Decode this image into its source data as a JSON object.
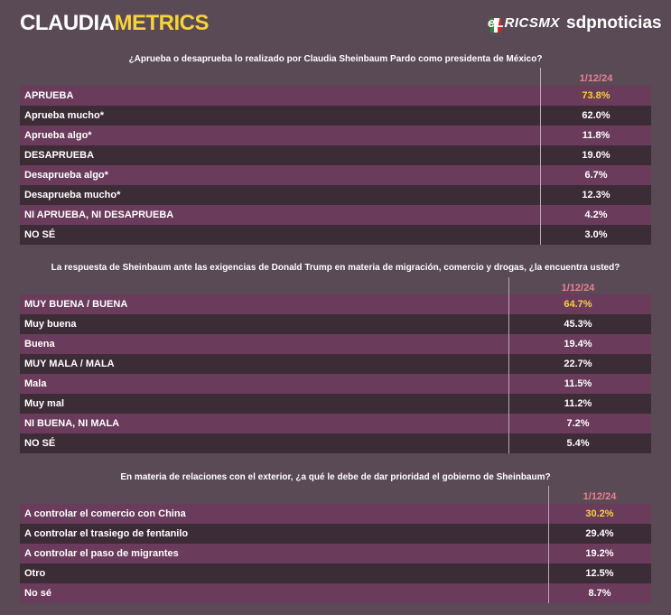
{
  "header": {
    "brand_a": "CLAUDIA",
    "brand_b": "METRICS",
    "partner_a": "eLRICSMX",
    "partner_b": "sdpnoticias"
  },
  "tables": [
    {
      "question": "¿Aprueba o desaprueba lo realizado por Claudia Sheinbaum Pardo como presidenta de México?",
      "date": "1/12/24",
      "rows": [
        [
          "APRUEBA",
          "73.8%"
        ],
        [
          "Aprueba mucho*",
          "62.0%"
        ],
        [
          "Aprueba algo*",
          "11.8%"
        ],
        [
          "DESAPRUEBA",
          "19.0%"
        ],
        [
          "Desaprueba algo*",
          "6.7%"
        ],
        [
          "Desaprueba mucho*",
          "12.3%"
        ],
        [
          "NI APRUEBA, NI DESAPRUEBA",
          "4.2%"
        ],
        [
          "NO SÉ",
          "3.0%"
        ]
      ]
    },
    {
      "question": "La respuesta de Sheinbaum ante las exigencias de Donald Trump en materia de migración, comercio y drogas, ¿la encuentra usted?",
      "date": "1/12/24",
      "rows": [
        [
          "MUY BUENA / BUENA",
          "64.7%"
        ],
        [
          "Muy buena",
          "45.3%"
        ],
        [
          "Buena",
          "19.4%"
        ],
        [
          "MUY MALA / MALA",
          "22.7%"
        ],
        [
          "Mala",
          "11.5%"
        ],
        [
          "Muy mal",
          "11.2%"
        ],
        [
          "NI BUENA, NI MALA",
          "7.2%"
        ],
        [
          "NO SÉ",
          "5.4%"
        ]
      ]
    },
    {
      "question": "En materia de relaciones con el exterior, ¿a qué le debe de dar prioridad el gobierno de Sheinbaum?",
      "date": "1/12/24",
      "rows": [
        [
          "A controlar el comercio con China",
          "30.2%"
        ],
        [
          "A controlar el trasiego de fentanilo",
          "29.4%"
        ],
        [
          "A controlar el paso de migrantes",
          "19.2%"
        ],
        [
          "Otro",
          "12.5%"
        ],
        [
          "No sé",
          "8.7%"
        ]
      ]
    }
  ]
}
